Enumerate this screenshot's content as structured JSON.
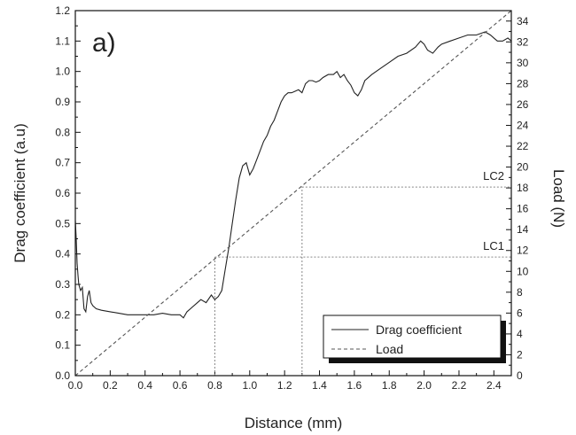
{
  "chart_data": {
    "type": "line",
    "panel_label": "a)",
    "xlabel": "Distance (mm)",
    "ylabel": "Drag coefficient (a.u)",
    "y2label": "Load (N)",
    "xlim": [
      0,
      2.5
    ],
    "ylim": [
      0,
      1.2
    ],
    "y2lim": [
      0,
      35
    ],
    "xticks": [
      "0.0",
      "0.2",
      "0.4",
      "0.6",
      "0.8",
      "1.0",
      "1.2",
      "1.4",
      "1.6",
      "1.8",
      "2.0",
      "2.2",
      "2.4"
    ],
    "yticks": [
      "0.0",
      "0.1",
      "0.2",
      "0.3",
      "0.4",
      "0.5",
      "0.6",
      "0.7",
      "0.8",
      "0.9",
      "1.0",
      "1.1",
      "1.2"
    ],
    "y2ticks": [
      "0",
      "2",
      "4",
      "6",
      "8",
      "10",
      "12",
      "14",
      "16",
      "18",
      "20",
      "22",
      "24",
      "26",
      "28",
      "30",
      "32",
      "34"
    ],
    "grid": false,
    "legend_position": "bottom-right",
    "series": [
      {
        "name": "Drag coefficient",
        "axis": "left",
        "style": "solid",
        "color": "#222222",
        "x": [
          0.0,
          0.005,
          0.01,
          0.015,
          0.02,
          0.03,
          0.04,
          0.05,
          0.06,
          0.07,
          0.08,
          0.09,
          0.1,
          0.12,
          0.15,
          0.2,
          0.25,
          0.3,
          0.35,
          0.4,
          0.45,
          0.5,
          0.55,
          0.6,
          0.62,
          0.64,
          0.66,
          0.7,
          0.72,
          0.75,
          0.78,
          0.8,
          0.82,
          0.84,
          0.86,
          0.88,
          0.9,
          0.92,
          0.94,
          0.96,
          0.98,
          1.0,
          1.02,
          1.04,
          1.06,
          1.08,
          1.1,
          1.12,
          1.14,
          1.16,
          1.18,
          1.2,
          1.22,
          1.24,
          1.26,
          1.28,
          1.3,
          1.32,
          1.34,
          1.36,
          1.38,
          1.4,
          1.42,
          1.45,
          1.48,
          1.5,
          1.52,
          1.54,
          1.56,
          1.58,
          1.6,
          1.62,
          1.64,
          1.66,
          1.7,
          1.75,
          1.8,
          1.85,
          1.9,
          1.95,
          1.98,
          2.0,
          2.02,
          2.05,
          2.08,
          2.1,
          2.15,
          2.2,
          2.25,
          2.3,
          2.35,
          2.38,
          2.4,
          2.42,
          2.45,
          2.48,
          2.5
        ],
        "y": [
          0.51,
          0.45,
          0.37,
          0.33,
          0.3,
          0.28,
          0.29,
          0.22,
          0.21,
          0.26,
          0.28,
          0.24,
          0.23,
          0.22,
          0.215,
          0.21,
          0.205,
          0.2,
          0.2,
          0.2,
          0.2,
          0.205,
          0.2,
          0.2,
          0.19,
          0.21,
          0.22,
          0.24,
          0.25,
          0.24,
          0.265,
          0.25,
          0.26,
          0.28,
          0.35,
          0.42,
          0.5,
          0.58,
          0.65,
          0.69,
          0.7,
          0.66,
          0.68,
          0.71,
          0.74,
          0.77,
          0.79,
          0.82,
          0.84,
          0.87,
          0.9,
          0.92,
          0.93,
          0.93,
          0.935,
          0.94,
          0.93,
          0.96,
          0.97,
          0.97,
          0.965,
          0.97,
          0.98,
          0.99,
          0.99,
          1.0,
          0.98,
          0.99,
          0.97,
          0.955,
          0.93,
          0.92,
          0.94,
          0.97,
          0.99,
          1.01,
          1.03,
          1.05,
          1.06,
          1.08,
          1.1,
          1.09,
          1.07,
          1.06,
          1.08,
          1.09,
          1.1,
          1.11,
          1.12,
          1.12,
          1.13,
          1.12,
          1.11,
          1.1,
          1.1,
          1.11,
          1.1
        ]
      },
      {
        "name": "Load",
        "axis": "right",
        "style": "dashed",
        "color": "#555555",
        "x": [
          0,
          2.5
        ],
        "y": [
          0,
          35
        ]
      }
    ],
    "reference_lines": [
      {
        "label": "LC1",
        "x": 0.8,
        "y": 0.39
      },
      {
        "label": "LC2",
        "x": 1.3,
        "y": 0.62
      }
    ]
  }
}
